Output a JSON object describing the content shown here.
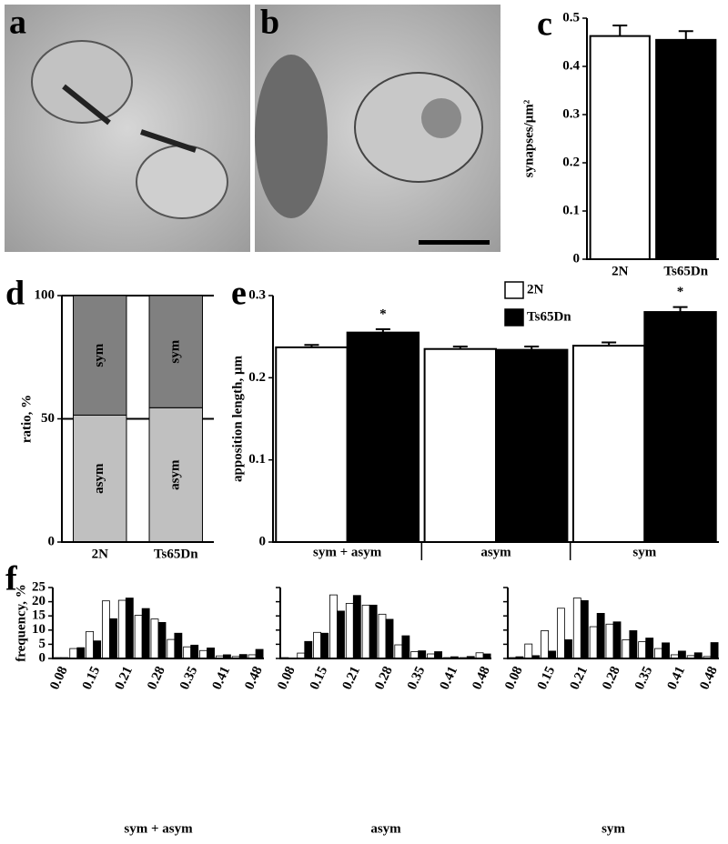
{
  "images": [
    {
      "panel_label": "a"
    },
    {
      "panel_label": "b"
    }
  ],
  "chart_data": [
    {
      "type": "bar",
      "panel_label": "c",
      "y_label": "synapses/μm²",
      "categories": [
        "2N",
        "Ts65Dn"
      ],
      "values": [
        0.463,
        0.455
      ],
      "errors": [
        0.022,
        0.018
      ],
      "colors": [
        "#ffffff",
        "#000000"
      ],
      "ylim": [
        0,
        0.5
      ],
      "yticks": [
        0,
        0.1,
        0.2,
        0.3,
        0.4,
        0.5
      ]
    },
    {
      "type": "stacked_bar",
      "panel_label": "d",
      "y_label": "ratio, %",
      "categories": [
        "2N",
        "Ts65Dn"
      ],
      "series": [
        {
          "name": "asym",
          "color": "#c0c0c0",
          "values": [
            51.5,
            54.5
          ]
        },
        {
          "name": "sym",
          "color": "#808080",
          "values": [
            48.5,
            45.5
          ]
        }
      ],
      "ylim": [
        0,
        100
      ],
      "yticks": [
        0,
        50,
        100
      ],
      "grid": true
    },
    {
      "type": "grouped_bar",
      "panel_label": "e",
      "y_label": "apposition length, μm",
      "categories": [
        "sym + asym",
        "asym",
        "sym"
      ],
      "series": [
        {
          "name": "2N",
          "color": "#ffffff",
          "values": [
            0.237,
            0.235,
            0.239
          ],
          "errors": [
            0.003,
            0.003,
            0.004
          ]
        },
        {
          "name": "Ts65Dn",
          "color": "#000000",
          "values": [
            0.255,
            0.234,
            0.28
          ],
          "errors": [
            0.004,
            0.004,
            0.006
          ],
          "significance": [
            "*",
            null,
            "*"
          ]
        }
      ],
      "ylim": [
        0,
        0.3
      ],
      "yticks": [
        0,
        0.1,
        0.2,
        0.3
      ],
      "legend": "top-right"
    },
    {
      "type": "grouped_bar",
      "panel_label": "f",
      "y_label": "frequency, %",
      "x_label": "sym + asym",
      "categories": [
        "0.08",
        null,
        "0.15",
        null,
        "0.21",
        null,
        "0.28",
        null,
        "0.35",
        null,
        "0.41",
        null,
        "0.48"
      ],
      "series": [
        {
          "color": "#ffffff",
          "values": [
            0.3,
            3.5,
            9.5,
            20.3,
            20.5,
            15.2,
            13.9,
            6.7,
            4.1,
            2.8,
            0.9,
            0.7,
            1.3
          ]
        },
        {
          "color": "#000000",
          "values": [
            0.3,
            3.8,
            6.2,
            14.0,
            21.3,
            17.6,
            12.7,
            8.9,
            4.7,
            3.7,
            1.3,
            1.4,
            3.2
          ]
        }
      ],
      "ylim": [
        0,
        25
      ],
      "yticks": [
        0,
        5,
        10,
        15,
        20,
        25
      ],
      "ytick_labels": true
    },
    {
      "type": "grouped_bar",
      "x_label": "asym",
      "categories": [
        "0.08",
        null,
        "0.15",
        null,
        "0.21",
        null,
        "0.28",
        null,
        "0.35",
        null,
        "0.41",
        null,
        "0.48"
      ],
      "series": [
        {
          "color": "#ffffff",
          "values": [
            0.3,
            1.9,
            9.2,
            22.4,
            19.4,
            18.8,
            15.6,
            4.8,
            2.4,
            1.6,
            0.3,
            0.3,
            2.0
          ]
        },
        {
          "color": "#000000",
          "values": [
            0,
            6.0,
            8.9,
            16.7,
            22.2,
            18.8,
            13.8,
            8.0,
            2.7,
            2.4,
            0.6,
            0.7,
            1.6
          ]
        }
      ],
      "ylim": [
        0,
        25
      ],
      "yticks": [
        0,
        5,
        10,
        15,
        20,
        25
      ],
      "ytick_labels": false
    },
    {
      "type": "grouped_bar",
      "x_label": "sym",
      "categories": [
        "0.08",
        null,
        "0.15",
        null,
        "0.21",
        null,
        "0.28",
        null,
        "0.35",
        null,
        "0.41",
        null,
        "0.48"
      ],
      "series": [
        {
          "color": "#ffffff",
          "values": [
            0.3,
            5.1,
            9.8,
            17.7,
            21.3,
            11.2,
            12.1,
            6.6,
            5.9,
            3.5,
            1.3,
            1.0,
            0.7
          ]
        },
        {
          "color": "#000000",
          "values": [
            0.6,
            1.0,
            2.6,
            6.6,
            20.4,
            15.9,
            12.9,
            9.8,
            7.2,
            5.5,
            2.6,
            2.0,
            5.6
          ]
        }
      ],
      "ylim": [
        0,
        25
      ],
      "yticks": [
        0,
        5,
        10,
        15,
        20,
        25
      ],
      "ytick_labels": false
    }
  ]
}
